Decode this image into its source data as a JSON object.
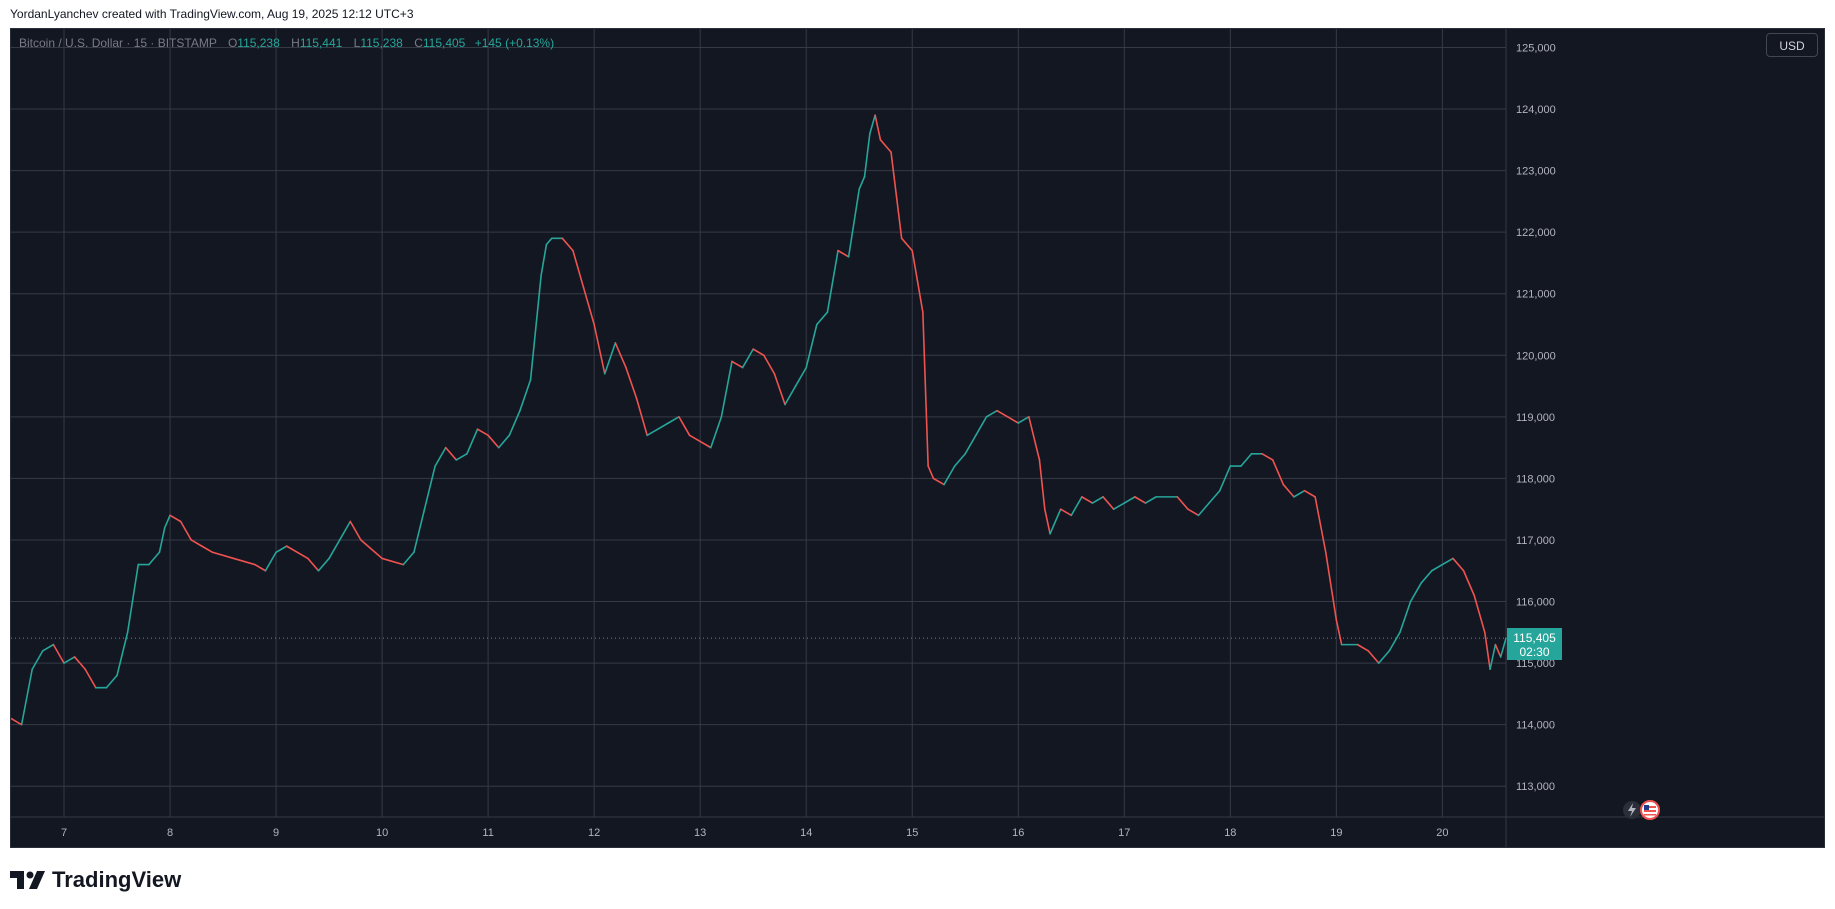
{
  "header": {
    "attribution": "YordanLyanchev created with TradingView.com, Aug 19, 2025 12:12 UTC+3"
  },
  "legend": {
    "symbol": "Bitcoin / U.S. Dollar · 15 · BITSTAMP",
    "open_label": "O",
    "open": "115,238",
    "high_label": "H",
    "high": "115,441",
    "low_label": "L",
    "low": "115,238",
    "close_label": "C",
    "close": "115,405",
    "change": "+145 (+0.13%)"
  },
  "currency_button": "USD",
  "last_price": {
    "price": "115,405",
    "countdown": "02:30"
  },
  "footer": {
    "brand": "TradingView"
  },
  "colors": {
    "up": "#26a69a",
    "down": "#ef5350",
    "background": "#131722",
    "grid": "#363a45"
  },
  "icons": [
    "trading-view-logo-icon",
    "lightning-icon",
    "us-flag-icon"
  ],
  "chart_data": {
    "type": "line",
    "title": "Bitcoin / U.S. Dollar · 15 · BITSTAMP",
    "xlabel": "",
    "ylabel": "",
    "x_ticks": [
      "7",
      "8",
      "9",
      "10",
      "11",
      "12",
      "13",
      "14",
      "15",
      "16",
      "17",
      "18",
      "19",
      "20"
    ],
    "y_ticks": [
      "113,000",
      "114,000",
      "115,000",
      "116,000",
      "117,000",
      "118,000",
      "119,000",
      "120,000",
      "121,000",
      "122,000",
      "123,000",
      "124,000",
      "125,000"
    ],
    "ylim": [
      112500,
      125300
    ],
    "xlim": [
      6.5,
      20.6
    ],
    "grid": true,
    "last_price": 115405,
    "series": [
      {
        "values": [
          [
            6.5,
            114100
          ],
          [
            6.6,
            114000
          ],
          [
            6.7,
            114900
          ],
          [
            6.8,
            115200
          ],
          [
            6.9,
            115300
          ],
          [
            7.0,
            115000
          ],
          [
            7.1,
            115100
          ],
          [
            7.2,
            114900
          ],
          [
            7.3,
            114600
          ],
          [
            7.4,
            114600
          ],
          [
            7.5,
            114800
          ],
          [
            7.6,
            115500
          ],
          [
            7.7,
            116600
          ],
          [
            7.8,
            116600
          ],
          [
            7.9,
            116800
          ],
          [
            7.95,
            117200
          ],
          [
            8.0,
            117400
          ],
          [
            8.1,
            117300
          ],
          [
            8.2,
            117000
          ],
          [
            8.3,
            116900
          ],
          [
            8.4,
            116800
          ],
          [
            8.6,
            116700
          ],
          [
            8.8,
            116600
          ],
          [
            8.9,
            116500
          ],
          [
            9.0,
            116800
          ],
          [
            9.1,
            116900
          ],
          [
            9.3,
            116700
          ],
          [
            9.4,
            116500
          ],
          [
            9.5,
            116700
          ],
          [
            9.6,
            117000
          ],
          [
            9.7,
            117300
          ],
          [
            9.8,
            117000
          ],
          [
            10.0,
            116700
          ],
          [
            10.2,
            116600
          ],
          [
            10.3,
            116800
          ],
          [
            10.4,
            117500
          ],
          [
            10.5,
            118200
          ],
          [
            10.6,
            118500
          ],
          [
            10.7,
            118300
          ],
          [
            10.8,
            118400
          ],
          [
            10.9,
            118800
          ],
          [
            11.0,
            118700
          ],
          [
            11.1,
            118500
          ],
          [
            11.2,
            118700
          ],
          [
            11.3,
            119100
          ],
          [
            11.4,
            119600
          ],
          [
            11.5,
            121300
          ],
          [
            11.55,
            121800
          ],
          [
            11.6,
            121900
          ],
          [
            11.7,
            121900
          ],
          [
            11.8,
            121700
          ],
          [
            11.9,
            121100
          ],
          [
            12.0,
            120500
          ],
          [
            12.1,
            119700
          ],
          [
            12.2,
            120200
          ],
          [
            12.3,
            119800
          ],
          [
            12.4,
            119300
          ],
          [
            12.5,
            118700
          ],
          [
            12.6,
            118800
          ],
          [
            12.7,
            118900
          ],
          [
            12.8,
            119000
          ],
          [
            12.9,
            118700
          ],
          [
            13.0,
            118600
          ],
          [
            13.1,
            118500
          ],
          [
            13.2,
            119000
          ],
          [
            13.3,
            119900
          ],
          [
            13.4,
            119800
          ],
          [
            13.5,
            120100
          ],
          [
            13.6,
            120000
          ],
          [
            13.7,
            119700
          ],
          [
            13.8,
            119200
          ],
          [
            13.9,
            119500
          ],
          [
            14.0,
            119800
          ],
          [
            14.1,
            120500
          ],
          [
            14.2,
            120700
          ],
          [
            14.3,
            121700
          ],
          [
            14.4,
            121600
          ],
          [
            14.5,
            122700
          ],
          [
            14.55,
            122900
          ],
          [
            14.6,
            123600
          ],
          [
            14.65,
            123900
          ],
          [
            14.7,
            123500
          ],
          [
            14.8,
            123300
          ],
          [
            14.85,
            122600
          ],
          [
            14.9,
            121900
          ],
          [
            15.0,
            121700
          ],
          [
            15.05,
            121200
          ],
          [
            15.1,
            120700
          ],
          [
            15.15,
            118200
          ],
          [
            15.2,
            118000
          ],
          [
            15.3,
            117900
          ],
          [
            15.4,
            118200
          ],
          [
            15.5,
            118400
          ],
          [
            15.6,
            118700
          ],
          [
            15.7,
            119000
          ],
          [
            15.8,
            119100
          ],
          [
            15.9,
            119000
          ],
          [
            16.0,
            118900
          ],
          [
            16.1,
            119000
          ],
          [
            16.2,
            118300
          ],
          [
            16.25,
            117500
          ],
          [
            16.3,
            117100
          ],
          [
            16.4,
            117500
          ],
          [
            16.5,
            117400
          ],
          [
            16.6,
            117700
          ],
          [
            16.7,
            117600
          ],
          [
            16.8,
            117700
          ],
          [
            16.9,
            117500
          ],
          [
            17.0,
            117600
          ],
          [
            17.1,
            117700
          ],
          [
            17.2,
            117600
          ],
          [
            17.3,
            117700
          ],
          [
            17.5,
            117700
          ],
          [
            17.6,
            117500
          ],
          [
            17.7,
            117400
          ],
          [
            17.8,
            117600
          ],
          [
            17.9,
            117800
          ],
          [
            18.0,
            118200
          ],
          [
            18.1,
            118200
          ],
          [
            18.2,
            118400
          ],
          [
            18.3,
            118400
          ],
          [
            18.4,
            118300
          ],
          [
            18.5,
            117900
          ],
          [
            18.6,
            117700
          ],
          [
            18.7,
            117800
          ],
          [
            18.8,
            117700
          ],
          [
            18.9,
            116800
          ],
          [
            19.0,
            115700
          ],
          [
            19.05,
            115300
          ],
          [
            19.1,
            115300
          ],
          [
            19.2,
            115300
          ],
          [
            19.3,
            115200
          ],
          [
            19.4,
            115000
          ],
          [
            19.5,
            115200
          ],
          [
            19.6,
            115500
          ],
          [
            19.7,
            116000
          ],
          [
            19.8,
            116300
          ],
          [
            19.9,
            116500
          ],
          [
            20.0,
            116600
          ],
          [
            20.1,
            116700
          ],
          [
            20.2,
            116500
          ],
          [
            20.3,
            116100
          ],
          [
            20.4,
            115500
          ],
          [
            20.45,
            114900
          ],
          [
            20.5,
            115300
          ],
          [
            20.55,
            115100
          ],
          [
            20.6,
            115405
          ]
        ]
      }
    ]
  }
}
